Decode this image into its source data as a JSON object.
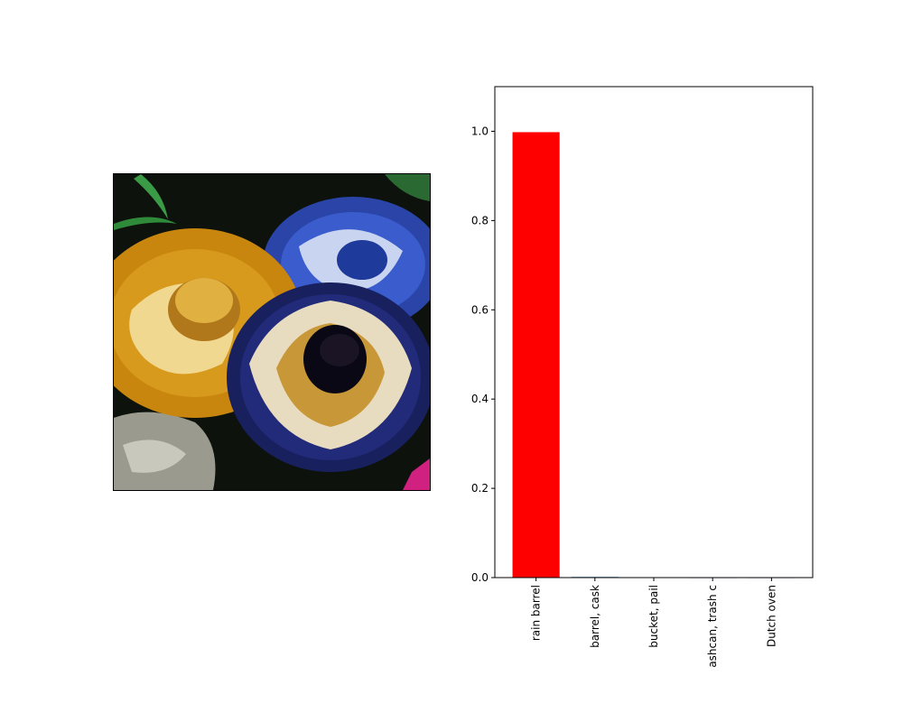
{
  "image_panel": {
    "subject": "photo of ornate embroidered sombreros",
    "colors": {
      "background": "#0d120c",
      "gold_hat": "#d89a1c",
      "blue_hat": "#2a44a8",
      "navy_hat": "#18205e",
      "cream_trim": "#e8dcc0",
      "leaf_green": "#2f8a3a"
    }
  },
  "chart_data": {
    "type": "bar",
    "categories": [
      "rain barrel",
      "barrel, cask",
      "bucket, pail",
      "ashcan, trash c",
      "Dutch oven"
    ],
    "values": [
      0.998,
      0.0015,
      0.0003,
      0.0001,
      0.0001
    ],
    "bar_colors": [
      "#ff0000",
      "#1f77b4",
      "#1f77b4",
      "#1f77b4",
      "#1f77b4"
    ],
    "title": "",
    "xlabel": "",
    "ylabel": "",
    "ylim": [
      0,
      1.1
    ],
    "yticks": [
      "0.0",
      "0.2",
      "0.4",
      "0.6",
      "0.8",
      "1.0"
    ],
    "grid": false
  }
}
